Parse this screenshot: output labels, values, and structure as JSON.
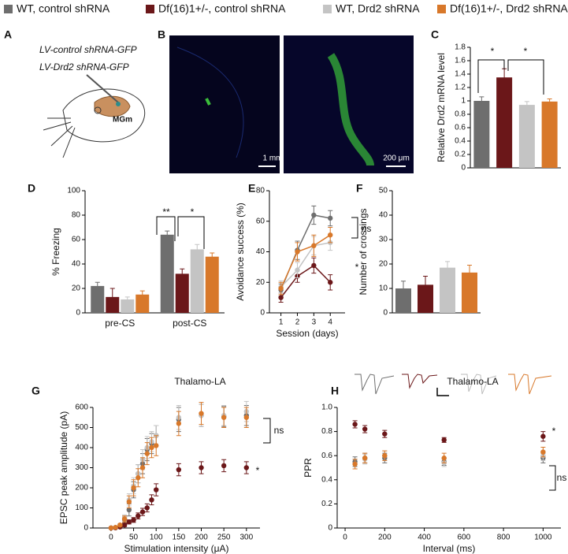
{
  "legend": [
    {
      "name": "WT, control shRNA",
      "color": "#6e6e6e"
    },
    {
      "name": "Df(16)1+/-, control shRNA",
      "color": "#6b1719"
    },
    {
      "name": "WT, Drd2 shRNA",
      "color": "#c4c4c4"
    },
    {
      "name": "Df(16)1+/-, Drd2 shRNA",
      "color": "#d8782a"
    }
  ],
  "panel_labels": [
    "A",
    "B",
    "C",
    "D",
    "E",
    "F",
    "G",
    "H"
  ],
  "panel_a": {
    "lines": [
      "LV-control shRNA-GFP",
      "LV-Drd2 shRNA-GFP"
    ],
    "region": "MGm"
  },
  "panel_b": {
    "scale_bars": [
      "1 mm",
      "200 μm"
    ]
  },
  "chart_data": [
    {
      "type": "bar",
      "ylabel": "Relative Drd2 mRNA level",
      "categories": [
        null,
        null,
        null,
        null
      ],
      "values": [
        1.0,
        1.35,
        0.94,
        0.99
      ],
      "errors": [
        0.06,
        0.13,
        0.05,
        0.04
      ],
      "colors": [
        "#6e6e6e",
        "#6b1719",
        "#c4c4c4",
        "#d8782a"
      ],
      "ylim": [
        0,
        1.8
      ],
      "yticks": [
        0,
        0.2,
        0.4,
        0.6,
        0.8,
        1,
        1.2,
        1.4,
        1.6,
        1.8
      ],
      "annotations": [
        "*",
        "*"
      ]
    },
    {
      "type": "bar",
      "ylabel": "% Freezing",
      "categories": [
        "pre-CS",
        "post-CS"
      ],
      "series": [
        {
          "name": "WT, control shRNA",
          "color": "#6e6e6e",
          "values": [
            22,
            64
          ],
          "errors": [
            3,
            3
          ]
        },
        {
          "name": "Df(16)1+/-, control shRNA",
          "color": "#6b1719",
          "values": [
            13,
            32
          ],
          "errors": [
            7,
            4
          ]
        },
        {
          "name": "WT, Drd2 shRNA",
          "color": "#c4c4c4",
          "values": [
            11,
            52
          ],
          "errors": [
            2,
            4
          ]
        },
        {
          "name": "Df(16)1+/-, Drd2 shRNA",
          "color": "#d8782a",
          "values": [
            15,
            46
          ],
          "errors": [
            3,
            3
          ]
        }
      ],
      "ylim": [
        0,
        100
      ],
      "yticks": [
        0,
        20,
        40,
        60,
        80,
        100
      ],
      "annotations": [
        "**",
        "*"
      ]
    },
    {
      "type": "line",
      "ylabel": "Avoidance success (%)",
      "xlabel": "Session (days)",
      "x": [
        1,
        2,
        3,
        4
      ],
      "series": [
        {
          "name": "WT, control shRNA",
          "color": "#6e6e6e",
          "values": [
            15,
            41,
            64,
            62
          ],
          "errors": [
            4,
            6,
            6,
            5
          ]
        },
        {
          "name": "Df(16)1+/-, control shRNA",
          "color": "#6b1719",
          "values": [
            10,
            24,
            31,
            20
          ],
          "errors": [
            3,
            4,
            5,
            5
          ]
        },
        {
          "name": "WT, Drd2 shRNA",
          "color": "#c4c4c4",
          "values": [
            17,
            28,
            44,
            46
          ],
          "errors": [
            4,
            5,
            6,
            5
          ]
        },
        {
          "name": "Df(16)1+/-, Drd2 shRNA",
          "color": "#d8782a",
          "values": [
            16,
            40,
            44,
            51
          ],
          "errors": [
            4,
            6,
            7,
            5
          ]
        }
      ],
      "xlim": [
        0.3,
        4.9
      ],
      "xticks": [
        1,
        2,
        3,
        4
      ],
      "ylim": [
        0,
        80
      ],
      "yticks": [
        0,
        20,
        40,
        60,
        80
      ],
      "annotations": [
        "ns",
        "*"
      ]
    },
    {
      "type": "bar",
      "ylabel": "Number of crossings",
      "categories": [
        null,
        null,
        null,
        null
      ],
      "values": [
        10,
        11.5,
        18.5,
        16.5
      ],
      "errors": [
        3,
        3.5,
        2.5,
        3
      ],
      "colors": [
        "#6e6e6e",
        "#6b1719",
        "#c4c4c4",
        "#d8782a"
      ],
      "ylim": [
        0,
        50
      ],
      "yticks": [
        0,
        10,
        20,
        30,
        40,
        50
      ],
      "annotations": []
    },
    {
      "type": "scatter",
      "title": "Thalamo-LA",
      "ylabel": "EPSC peak amplitude (pA)",
      "xlabel": "Stimulation intensity (μA)",
      "x": [
        0,
        10,
        20,
        30,
        40,
        50,
        60,
        70,
        80,
        90,
        100,
        150,
        200,
        250,
        300
      ],
      "series": [
        {
          "name": "WT, control shRNA",
          "color": "#6e6e6e",
          "values": [
            0,
            2,
            10,
            40,
            90,
            190,
            270,
            320,
            390,
            420,
            460,
            540,
            560,
            555,
            560
          ],
          "errors": [
            0,
            2,
            5,
            15,
            30,
            40,
            45,
            50,
            55,
            50,
            50,
            60,
            55,
            50,
            50
          ]
        },
        {
          "name": "WT, Drd2 shRNA",
          "color": "#c4c4c4",
          "values": [
            0,
            2,
            12,
            50,
            140,
            210,
            270,
            340,
            400,
            430,
            460,
            550,
            560,
            560,
            580
          ],
          "errors": [
            0,
            2,
            5,
            15,
            30,
            40,
            45,
            50,
            55,
            50,
            50,
            60,
            55,
            50,
            50
          ]
        },
        {
          "name": "Df(16)1+/-, control shRNA",
          "color": "#6b1719",
          "values": [
            0,
            1,
            5,
            15,
            30,
            40,
            60,
            80,
            100,
            140,
            190,
            290,
            300,
            310,
            300
          ],
          "errors": [
            0,
            1,
            3,
            8,
            10,
            12,
            15,
            18,
            20,
            25,
            30,
            30,
            30,
            30,
            30
          ]
        },
        {
          "name": "Df(16)1+/-, Drd2 shRNA",
          "color": "#d8782a",
          "values": [
            0,
            3,
            15,
            45,
            130,
            200,
            250,
            300,
            370,
            400,
            410,
            520,
            570,
            550,
            550
          ],
          "errors": [
            0,
            2,
            5,
            15,
            30,
            40,
            45,
            50,
            55,
            50,
            50,
            60,
            55,
            50,
            50
          ]
        }
      ],
      "xlim": [
        -40,
        330
      ],
      "xticks": [
        0,
        50,
        100,
        150,
        200,
        250,
        300
      ],
      "ylim": [
        0,
        600
      ],
      "yticks": [
        0,
        100,
        200,
        300,
        400,
        500,
        600
      ],
      "annotations": [
        "ns",
        "*"
      ]
    },
    {
      "type": "scatter",
      "title": "Thalamo-LA",
      "ylabel": "PPR",
      "xlabel": "Interval (ms)",
      "x": [
        50,
        100,
        200,
        500,
        1000
      ],
      "series": [
        {
          "name": "WT, control shRNA",
          "color": "#6e6e6e",
          "values": [
            0.55,
            0.58,
            0.58,
            0.55,
            0.58
          ],
          "errors": [
            0.04,
            0.04,
            0.04,
            0.03,
            0.04
          ]
        },
        {
          "name": "WT, Drd2 shRNA",
          "color": "#c4c4c4",
          "values": [
            0.53,
            0.57,
            0.6,
            0.54,
            0.6
          ],
          "errors": [
            0.04,
            0.04,
            0.04,
            0.03,
            0.04
          ]
        },
        {
          "name": "Df(16)1+/-, Drd2 shRNA",
          "color": "#d8782a",
          "values": [
            0.53,
            0.58,
            0.6,
            0.58,
            0.63
          ],
          "errors": [
            0.04,
            0.04,
            0.04,
            0.04,
            0.04
          ]
        },
        {
          "name": "Df(16)1+/-, control shRNA",
          "color": "#6b1719",
          "values": [
            0.86,
            0.82,
            0.78,
            0.73,
            0.76
          ],
          "errors": [
            0.03,
            0.03,
            0.03,
            0.02,
            0.04
          ]
        }
      ],
      "xlim": [
        -40,
        1090
      ],
      "xticks": [
        0,
        200,
        400,
        600,
        800,
        1000
      ],
      "ylim": [
        0,
        1
      ],
      "yticks": [
        0,
        0.2,
        0.4,
        0.6,
        0.8,
        {
          "value": 1,
          "label": "1.0"
        }
      ],
      "annotations": [
        "*",
        "ns"
      ]
    }
  ]
}
